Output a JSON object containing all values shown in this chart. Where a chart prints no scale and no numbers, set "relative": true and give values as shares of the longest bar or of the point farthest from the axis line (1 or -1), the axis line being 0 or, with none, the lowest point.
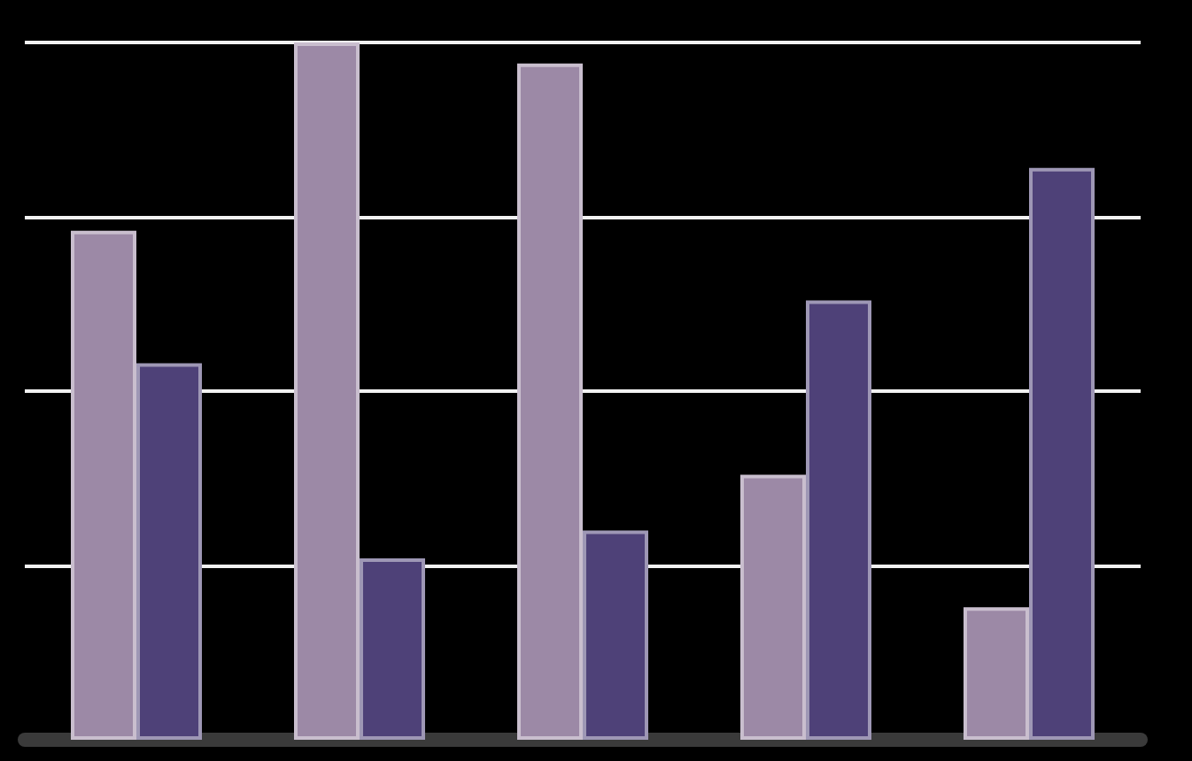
{
  "chart_data": {
    "type": "bar",
    "relative": true,
    "grid": "y",
    "categories": [
      null,
      null,
      null,
      null,
      null
    ],
    "series": [
      {
        "color": "#9c89a6",
        "values": [
          0.73,
          1,
          0.97,
          0.38,
          0.19
        ]
      },
      {
        "color": "#4e4178",
        "values": [
          0.54,
          0.26,
          0.3,
          0.63,
          0.82
        ]
      }
    ]
  }
}
